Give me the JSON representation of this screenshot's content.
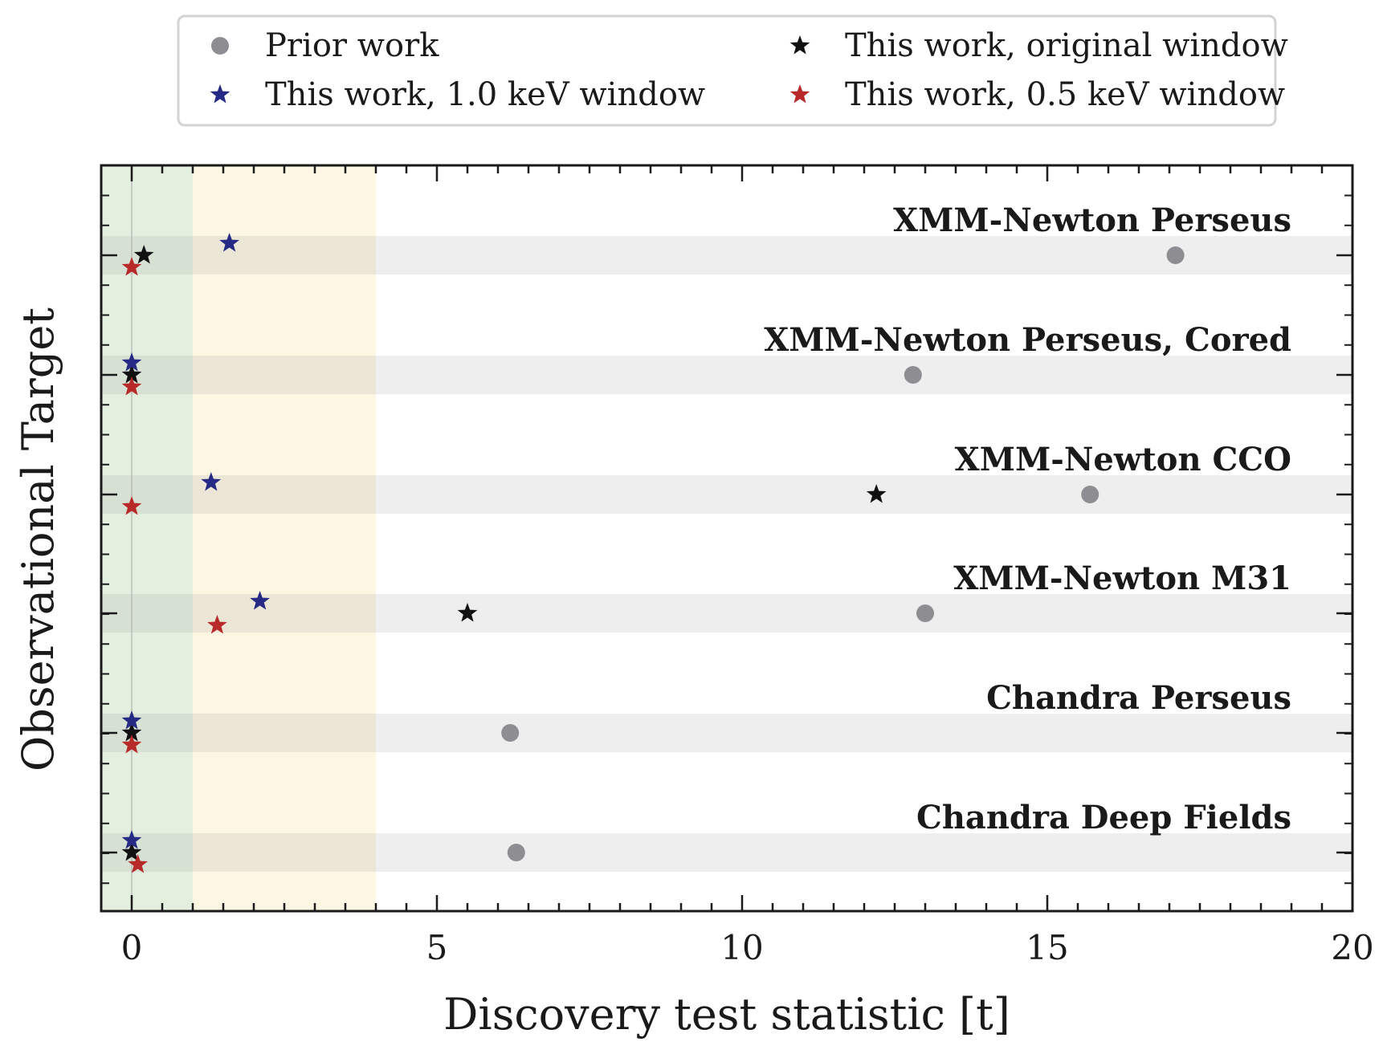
{
  "chart_data": {
    "type": "scatter",
    "xlabel": "Discovery test statistic [t]",
    "ylabel": "Observational Target",
    "xlim": [
      -0.5,
      20
    ],
    "xticks": [
      "0",
      "5",
      "10",
      "15",
      "20"
    ],
    "shaded_regions": [
      {
        "from": -0.5,
        "to": 1.0,
        "color": "#e3f0df"
      },
      {
        "from": 1.0,
        "to": 4.0,
        "color": "#fdf6e3"
      }
    ],
    "categories": [
      "XMM-Newton Perseus",
      "XMM-Newton Perseus, Cored",
      "XMM-Newton CCO",
      "XMM-Newton M31",
      "Chandra Perseus",
      "Chandra Deep Fields"
    ],
    "series": [
      {
        "name": "Prior work",
        "marker": "circle",
        "color": "#8e8e92",
        "values": [
          17.1,
          12.8,
          15.7,
          13.0,
          6.2,
          6.3
        ]
      },
      {
        "name": "This work, original window",
        "marker": "star",
        "color": "#111111",
        "values": [
          0.2,
          0.0,
          12.2,
          5.5,
          0.0,
          0.0
        ]
      },
      {
        "name": "This work, 1.0 keV window",
        "marker": "star",
        "color": "#262a85",
        "values": [
          1.6,
          0.0,
          1.3,
          2.1,
          0.0,
          0.0
        ]
      },
      {
        "name": "This work, 0.5 keV window",
        "marker": "star",
        "color": "#b82a2a",
        "values": [
          0.0,
          0.0,
          0.0,
          1.4,
          0.0,
          0.1
        ]
      }
    ],
    "legend_position": "top"
  }
}
